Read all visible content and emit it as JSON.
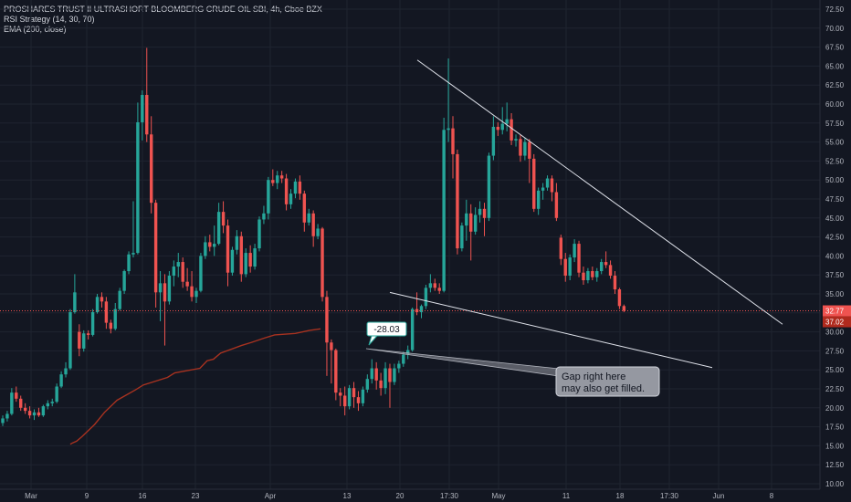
{
  "header": {
    "symbol_line": "PROSHARES TRUST II ULTRASHORT BLOOMBERG CRUDE OIL SBI, 4h, Cboe BZX",
    "indicator_1": "RSI Strategy (14, 30, 70)",
    "indicator_2": "EMA (200, close)"
  },
  "colors": {
    "background": "#131722",
    "grid": "#1f2430",
    "up": "#26a69a",
    "down": "#ef5350",
    "ema": "#a83220",
    "trendline": "#e0e3eb",
    "price_line": "#ef5350",
    "ema_tag": "#b02a1e"
  },
  "price_tags": {
    "last": "32.77",
    "ema": "37.02"
  },
  "callout_label": "-28.03",
  "annotation": {
    "line1": "Gap right here",
    "line2": "may also get filled."
  },
  "chart_data": {
    "type": "candlestick",
    "y_axis": {
      "min": 10,
      "max": 72.5,
      "ticks": [
        "72.50",
        "70.00",
        "67.50",
        "65.00",
        "62.50",
        "60.00",
        "57.50",
        "55.00",
        "52.50",
        "50.00",
        "47.50",
        "45.00",
        "42.50",
        "40.00",
        "37.50",
        "35.00",
        "32.50",
        "30.00",
        "27.50",
        "25.00",
        "22.50",
        "20.00",
        "17.50",
        "15.00",
        "12.50",
        "10.00"
      ]
    },
    "x_axis": {
      "ticks": [
        "Mar",
        "9",
        "16",
        "23",
        "Apr",
        "13",
        "20",
        "17:30",
        "May",
        "11",
        "18",
        "17:30",
        "Jun",
        "8"
      ]
    },
    "candles": [
      [
        18.0,
        19.0,
        17.6,
        18.6
      ],
      [
        18.6,
        19.6,
        18.2,
        19.2
      ],
      [
        19.2,
        22.6,
        19.0,
        22.0
      ],
      [
        22.0,
        22.8,
        20.8,
        21.2
      ],
      [
        21.2,
        21.6,
        19.6,
        20.0
      ],
      [
        20.0,
        20.6,
        19.2,
        19.6
      ],
      [
        19.6,
        20.2,
        18.6,
        19.0
      ],
      [
        19.0,
        19.8,
        18.4,
        19.4
      ],
      [
        19.4,
        20.0,
        18.8,
        19.0
      ],
      [
        19.0,
        20.4,
        18.8,
        20.2
      ],
      [
        20.2,
        21.0,
        19.8,
        20.6
      ],
      [
        20.6,
        21.2,
        20.2,
        20.8
      ],
      [
        20.8,
        23.2,
        20.6,
        22.8
      ],
      [
        22.8,
        24.8,
        22.6,
        24.4
      ],
      [
        24.4,
        26.0,
        24.0,
        25.2
      ],
      [
        25.2,
        33.0,
        25.0,
        32.6
      ],
      [
        32.6,
        37.6,
        32.4,
        35.2
      ],
      [
        30.0,
        31.0,
        26.8,
        27.8
      ],
      [
        27.8,
        30.2,
        27.4,
        29.8
      ],
      [
        29.8,
        30.2,
        29.0,
        29.6
      ],
      [
        29.6,
        33.0,
        29.4,
        32.6
      ],
      [
        32.6,
        35.0,
        32.4,
        34.6
      ],
      [
        34.6,
        35.2,
        33.2,
        34.0
      ],
      [
        34.0,
        34.6,
        30.4,
        31.2
      ],
      [
        31.2,
        31.6,
        29.8,
        30.4
      ],
      [
        30.4,
        33.8,
        30.2,
        33.0
      ],
      [
        33.0,
        35.8,
        32.8,
        35.4
      ],
      [
        35.4,
        38.2,
        35.0,
        38.0
      ],
      [
        38.0,
        40.6,
        37.6,
        40.2
      ],
      [
        40.2,
        47.2,
        39.8,
        40.4
      ],
      [
        40.4,
        60.2,
        40.2,
        57.6
      ],
      [
        57.6,
        61.8,
        55.2,
        61.2
      ],
      [
        61.2,
        67.4,
        55.0,
        56.0
      ],
      [
        56.0,
        58.4,
        45.6,
        47.0
      ],
      [
        47.0,
        47.4,
        33.2,
        35.2
      ],
      [
        35.2,
        38.0,
        31.4,
        36.4
      ],
      [
        36.4,
        37.6,
        28.2,
        34.0
      ],
      [
        34.0,
        38.0,
        33.6,
        37.4
      ],
      [
        37.4,
        39.4,
        36.0,
        38.6
      ],
      [
        38.6,
        40.4,
        37.2,
        39.2
      ],
      [
        39.2,
        39.8,
        35.8,
        36.6
      ],
      [
        36.6,
        38.4,
        35.4,
        36.0
      ],
      [
        36.0,
        38.0,
        34.0,
        34.6
      ],
      [
        34.6,
        35.8,
        33.8,
        35.4
      ],
      [
        35.4,
        40.4,
        35.2,
        40.0
      ],
      [
        40.0,
        42.6,
        39.6,
        41.8
      ],
      [
        41.8,
        42.8,
        40.6,
        41.2
      ],
      [
        41.2,
        44.0,
        40.0,
        41.6
      ],
      [
        41.6,
        47.0,
        41.4,
        45.8
      ],
      [
        45.8,
        47.2,
        43.0,
        44.0
      ],
      [
        44.0,
        44.8,
        36.0,
        37.8
      ],
      [
        37.8,
        41.2,
        37.4,
        40.8
      ],
      [
        40.8,
        43.4,
        40.2,
        42.6
      ],
      [
        42.6,
        43.2,
        36.6,
        37.6
      ],
      [
        37.6,
        41.0,
        37.2,
        40.4
      ],
      [
        40.4,
        41.4,
        37.8,
        38.6
      ],
      [
        38.6,
        41.6,
        38.2,
        41.0
      ],
      [
        41.0,
        45.2,
        40.6,
        44.8
      ],
      [
        44.8,
        46.6,
        44.2,
        45.6
      ],
      [
        45.6,
        50.4,
        44.8,
        50.0
      ],
      [
        50.0,
        51.4,
        49.2,
        49.6
      ],
      [
        49.6,
        51.2,
        48.8,
        50.6
      ],
      [
        50.6,
        51.2,
        49.6,
        50.2
      ],
      [
        50.2,
        50.8,
        46.0,
        46.8
      ],
      [
        46.8,
        48.8,
        46.2,
        48.2
      ],
      [
        48.2,
        50.2,
        47.6,
        49.8
      ],
      [
        49.8,
        50.6,
        47.4,
        48.2
      ],
      [
        48.2,
        48.6,
        43.2,
        44.4
      ],
      [
        44.4,
        46.2,
        44.0,
        45.6
      ],
      [
        45.6,
        46.0,
        41.2,
        42.6
      ],
      [
        42.6,
        44.2,
        42.2,
        43.6
      ],
      [
        43.6,
        43.8,
        34.0,
        34.6
      ],
      [
        34.6,
        35.4,
        24.2,
        28.6
      ],
      [
        28.6,
        29.0,
        23.2,
        27.6
      ],
      [
        27.6,
        27.8,
        21.0,
        22.0
      ],
      [
        22.0,
        22.6,
        20.2,
        21.6
      ],
      [
        21.6,
        22.8,
        19.0,
        20.2
      ],
      [
        20.2,
        23.0,
        19.8,
        22.6
      ],
      [
        22.6,
        23.4,
        20.0,
        21.4
      ],
      [
        21.4,
        22.2,
        19.6,
        20.6
      ],
      [
        20.6,
        22.8,
        20.2,
        22.4
      ],
      [
        22.4,
        24.4,
        22.0,
        23.8
      ],
      [
        23.8,
        26.4,
        23.2,
        25.2
      ],
      [
        25.2,
        26.0,
        22.4,
        23.6
      ],
      [
        23.6,
        24.6,
        21.6,
        22.6
      ],
      [
        22.6,
        26.0,
        21.8,
        25.2
      ],
      [
        25.2,
        25.8,
        20.0,
        23.4
      ],
      [
        23.4,
        25.8,
        23.0,
        25.2
      ],
      [
        25.2,
        26.2,
        24.6,
        25.8
      ],
      [
        25.8,
        27.4,
        25.4,
        27.0
      ],
      [
        27.0,
        28.2,
        26.4,
        27.6
      ],
      [
        27.6,
        33.2,
        27.4,
        33.0
      ],
      [
        33.0,
        35.2,
        32.2,
        32.6
      ],
      [
        32.6,
        33.6,
        31.8,
        33.4
      ],
      [
        33.4,
        36.2,
        33.0,
        35.8
      ],
      [
        35.8,
        37.6,
        35.2,
        36.4
      ],
      [
        36.4,
        37.0,
        35.4,
        35.8
      ],
      [
        35.8,
        36.4,
        35.0,
        35.4
      ],
      [
        35.4,
        58.2,
        35.2,
        56.6
      ],
      [
        56.6,
        66.0,
        55.0,
        56.8
      ],
      [
        56.8,
        58.4,
        50.2,
        53.4
      ],
      [
        53.4,
        54.0,
        40.2,
        41.0
      ],
      [
        41.0,
        44.4,
        40.6,
        44.0
      ],
      [
        44.0,
        47.4,
        42.0,
        45.6
      ],
      [
        45.6,
        46.8,
        39.4,
        43.2
      ],
      [
        43.2,
        46.4,
        42.8,
        45.4
      ],
      [
        45.4,
        47.2,
        44.4,
        46.2
      ],
      [
        46.2,
        47.0,
        42.6,
        45.0
      ],
      [
        45.0,
        53.6,
        44.6,
        53.2
      ],
      [
        53.2,
        58.4,
        52.6,
        57.0
      ],
      [
        57.0,
        57.6,
        55.8,
        56.6
      ],
      [
        56.6,
        59.6,
        56.0,
        57.4
      ],
      [
        57.4,
        60.2,
        56.4,
        58.0
      ],
      [
        58.0,
        58.8,
        54.6,
        55.2
      ],
      [
        55.2,
        56.0,
        54.4,
        55.4
      ],
      [
        55.4,
        56.0,
        52.4,
        53.2
      ],
      [
        53.2,
        55.6,
        52.6,
        55.0
      ],
      [
        55.0,
        55.4,
        49.6,
        52.8
      ],
      [
        52.8,
        53.4,
        45.8,
        46.2
      ],
      [
        46.2,
        49.0,
        45.4,
        48.6
      ],
      [
        48.6,
        49.6,
        47.4,
        49.0
      ],
      [
        49.0,
        50.6,
        48.6,
        50.2
      ],
      [
        50.2,
        50.6,
        47.2,
        48.4
      ],
      [
        48.4,
        49.6,
        44.6,
        45.0
      ],
      [
        42.4,
        42.8,
        38.8,
        39.6
      ],
      [
        39.6,
        40.4,
        36.6,
        37.4
      ],
      [
        37.4,
        40.2,
        36.8,
        39.8
      ],
      [
        39.8,
        42.2,
        39.2,
        41.6
      ],
      [
        41.6,
        42.0,
        37.2,
        37.8
      ],
      [
        37.8,
        38.6,
        36.2,
        36.8
      ],
      [
        36.8,
        38.4,
        36.4,
        38.0
      ],
      [
        38.0,
        38.6,
        36.8,
        37.2
      ],
      [
        37.2,
        38.4,
        36.6,
        38.0
      ],
      [
        38.0,
        39.6,
        37.6,
        39.2
      ],
      [
        39.2,
        40.6,
        38.4,
        38.8
      ],
      [
        38.8,
        39.4,
        37.0,
        37.4
      ],
      [
        37.4,
        38.0,
        35.0,
        35.6
      ],
      [
        35.6,
        35.8,
        33.0,
        33.4
      ],
      [
        33.4,
        33.6,
        32.6,
        32.8
      ]
    ],
    "ema": [
      [
        15.0,
        15.2
      ],
      [
        15.6,
        15.4
      ],
      [
        16.4,
        15.6
      ],
      [
        17.6,
        16.2
      ],
      [
        20.4,
        17.8
      ],
      [
        22.6,
        19.4
      ],
      [
        25.4,
        21.0
      ],
      [
        29.6,
        22.4
      ],
      [
        31.2,
        23.0
      ],
      [
        36.6,
        24.0
      ],
      [
        38.2,
        24.6
      ],
      [
        43.8,
        25.2
      ],
      [
        45.4,
        26.2
      ],
      [
        46.8,
        26.4
      ],
      [
        48.4,
        27.2
      ],
      [
        53.0,
        28.2
      ],
      [
        55.2,
        28.6
      ],
      [
        58.2,
        29.2
      ],
      [
        60.4,
        29.6
      ],
      [
        65.0,
        29.8
      ],
      [
        68.2,
        30.2
      ],
      [
        70.6,
        30.4
      ]
    ]
  }
}
